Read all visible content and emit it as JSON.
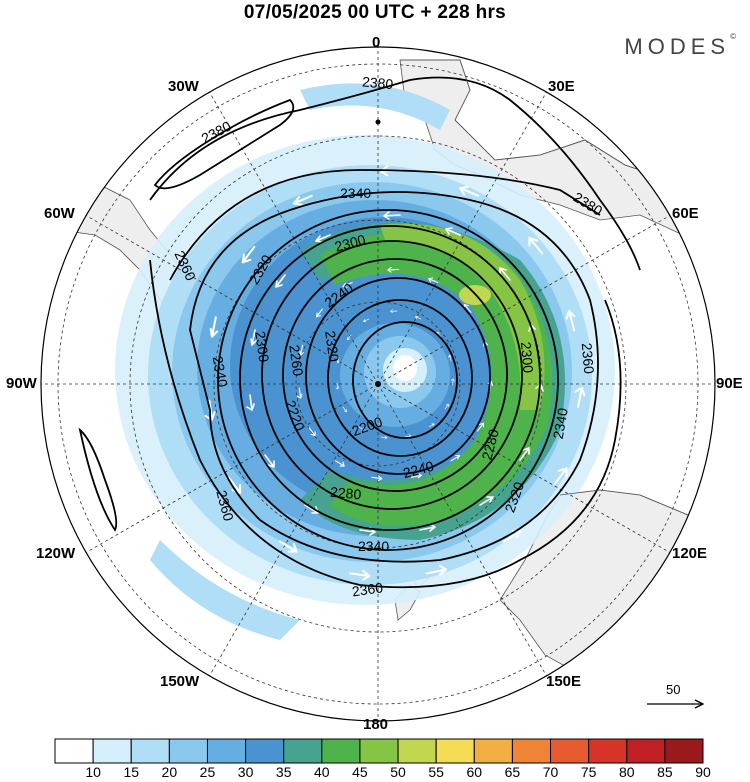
{
  "title": "07/05/2025  00 UTC  + 228 hrs",
  "brand": "MODES",
  "brand_mark": "©",
  "longitude_labels": {
    "n0": "0",
    "e30": "30E",
    "e60": "60E",
    "e90": "90E",
    "e120": "120E",
    "e150": "150E",
    "s180": "180",
    "w150": "150W",
    "w120": "120W",
    "w90": "90W",
    "w60": "60W",
    "w30": "30W"
  },
  "contour_labels": [
    "2380",
    "2380",
    "2380",
    "2360",
    "2360",
    "2360",
    "2360",
    "2340",
    "2340",
    "2340",
    "2340",
    "2320",
    "2320",
    "2320",
    "2300",
    "2300",
    "2300",
    "2280",
    "2280",
    "2260",
    "2240",
    "2240",
    "2220",
    "2200"
  ],
  "reference_vector": {
    "value": "50"
  },
  "colorbar": {
    "levels": [
      "10",
      "15",
      "20",
      "25",
      "30",
      "35",
      "40",
      "45",
      "50",
      "55",
      "60",
      "65",
      "70",
      "75",
      "80",
      "85",
      "90"
    ],
    "colors": [
      "#ffffff",
      "#d6f0fb",
      "#b0def6",
      "#8bc8ee",
      "#66aee2",
      "#4a93d0",
      "#45a38f",
      "#4fb34c",
      "#86c445",
      "#c2d64f",
      "#f5dc55",
      "#f3b042",
      "#ef8436",
      "#e85a2f",
      "#d83328",
      "#c01f24",
      "#9a1a1c"
    ]
  },
  "colors": {
    "land": "#eeeeee",
    "coast": "#555555",
    "contour": "#000000",
    "arrows": "#ffffff"
  }
}
